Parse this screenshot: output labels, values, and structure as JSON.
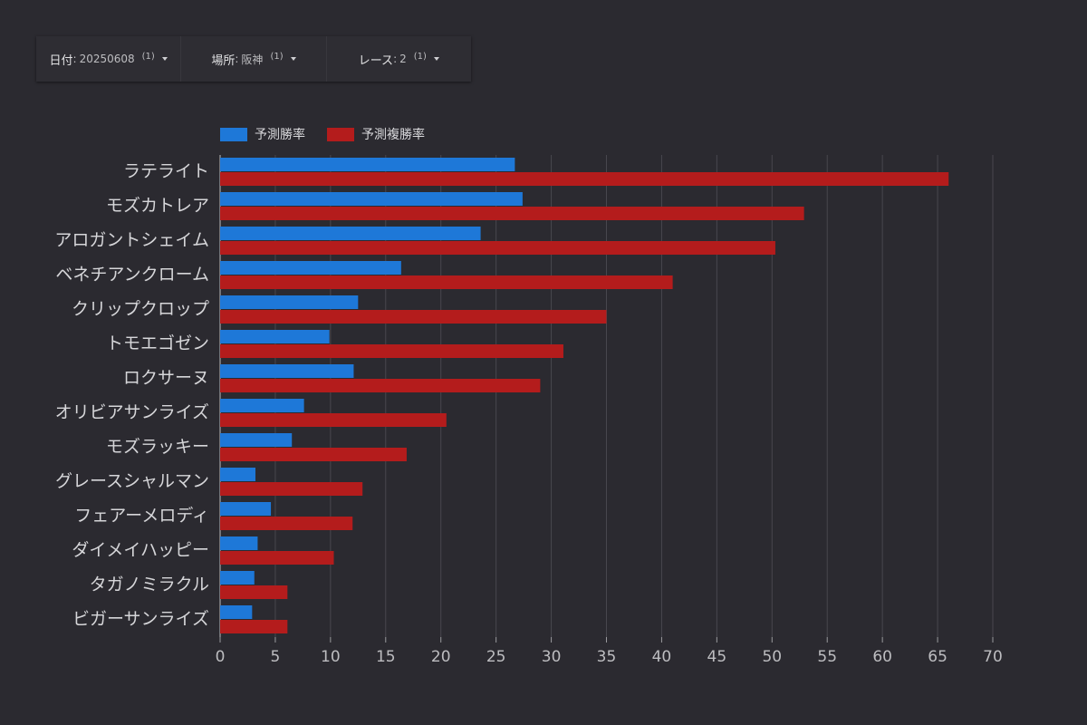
{
  "filters": [
    {
      "label": "日付",
      "value": "20250608",
      "count": "(1)"
    },
    {
      "label": "場所",
      "value": "阪神",
      "count": "(1)"
    },
    {
      "label": "レース",
      "value": "2",
      "count": "(1)"
    }
  ],
  "colors": {
    "series1": "#1e78d8",
    "series2": "#b41c1c",
    "background": "#2b2a30",
    "grid": "#48474e"
  },
  "chart_data": {
    "type": "bar",
    "orientation": "horizontal",
    "categories": [
      "ラテライト",
      "モズカトレア",
      "アロガントシェイム",
      "ベネチアンクローム",
      "クリップクロップ",
      "トモエゴゼン",
      "ロクサーヌ",
      "オリビアサンライズ",
      "モズラッキー",
      "グレースシャルマン",
      "フェアーメロディ",
      "ダイメイハッピー",
      "タガノミラクル",
      "ビガーサンライズ"
    ],
    "series": [
      {
        "name": "予測勝率",
        "color": "#1e78d8",
        "values": [
          26.7,
          27.4,
          23.6,
          16.4,
          12.5,
          9.9,
          12.1,
          7.6,
          6.5,
          3.2,
          4.6,
          3.4,
          3.1,
          2.9
        ]
      },
      {
        "name": "予測複勝率",
        "color": "#b41c1c",
        "values": [
          66.0,
          52.9,
          50.3,
          41.0,
          35.0,
          31.1,
          29.0,
          20.5,
          16.9,
          12.9,
          12.0,
          10.3,
          6.1,
          6.1
        ]
      }
    ],
    "xticks": [
      0,
      5,
      10,
      15,
      20,
      25,
      30,
      35,
      40,
      45,
      50,
      55,
      60,
      65,
      70
    ],
    "xlim": [
      0,
      70
    ],
    "grid": true,
    "legend": "top-left"
  }
}
